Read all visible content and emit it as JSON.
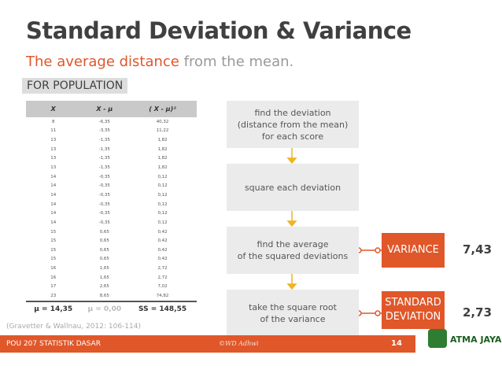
{
  "header": {
    "title": "Standard Deviation & Variance",
    "subtitle_highlight": "The average distance",
    "subtitle_rest": "from the mean.",
    "tag": "FOR POPULATION"
  },
  "table": {
    "columns": [
      "X",
      "X - μ",
      "( X - μ)²"
    ],
    "rows": [
      [
        "8",
        "-6,35",
        "40,32"
      ],
      [
        "11",
        "-3,35",
        "11,22"
      ],
      [
        "13",
        "-1,35",
        "1,82"
      ],
      [
        "13",
        "-1,35",
        "1,82"
      ],
      [
        "13",
        "-1,35",
        "1,82"
      ],
      [
        "13",
        "-1,35",
        "1,82"
      ],
      [
        "14",
        "-0,35",
        "0,12"
      ],
      [
        "14",
        "-0,35",
        "0,12"
      ],
      [
        "14",
        "-0,35",
        "0,12"
      ],
      [
        "14",
        "-0,35",
        "0,12"
      ],
      [
        "14",
        "-0,35",
        "0,12"
      ],
      [
        "14",
        "-0,35",
        "0,12"
      ],
      [
        "15",
        "0,65",
        "0,42"
      ],
      [
        "15",
        "0,65",
        "0,42"
      ],
      [
        "15",
        "0,65",
        "0,42"
      ],
      [
        "15",
        "0,65",
        "0,42"
      ],
      [
        "16",
        "1,65",
        "2,72"
      ],
      [
        "16",
        "1,65",
        "2,72"
      ],
      [
        "17",
        "2,65",
        "7,02"
      ],
      [
        "23",
        "8,65",
        "74,82"
      ]
    ],
    "footer": [
      "μ = 14,35",
      "μ = 0,00",
      "SS = 148,55"
    ]
  },
  "steps": [
    [
      "find the deviation",
      "(distance from the mean)",
      "for each score"
    ],
    [
      "square each deviation"
    ],
    [
      "find the average",
      "of the squared deviations"
    ],
    [
      "take the square root",
      "of the variance"
    ]
  ],
  "results": [
    {
      "label": [
        "VARIANCE"
      ],
      "value": "7,43"
    },
    {
      "label": [
        "STANDARD",
        "DEVIATION"
      ],
      "value": "2,73"
    }
  ],
  "citation": "(Gravetter & Wallnau, 2012: 106-114)",
  "footer": {
    "course": "POU 207 STATISTIK DASAR",
    "author": "©WD Adhwi",
    "page": "14",
    "logo": "ATMA JAYA"
  }
}
